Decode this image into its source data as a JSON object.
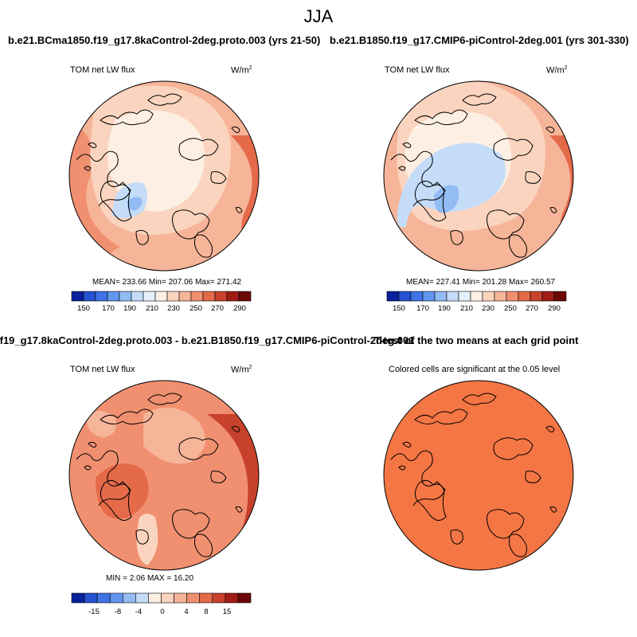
{
  "figure_title": "JJA",
  "colors": {
    "abs_palette": [
      "#08219c",
      "#2452d0",
      "#3f73e6",
      "#6296ee",
      "#93bbf4",
      "#c4dcf8",
      "#e6f0fa",
      "#fdefe3",
      "#fbd4bf",
      "#f6b498",
      "#f09070",
      "#e46a4a",
      "#c8412c",
      "#a01c14",
      "#6b0707"
    ],
    "diff_palette": [
      "#08219c",
      "#2452d0",
      "#3f73e6",
      "#6296ee",
      "#93bbf4",
      "#c4dcf8",
      "#fdefe3",
      "#fbd4bf",
      "#f6b498",
      "#f09070",
      "#e46a4a",
      "#c8412c",
      "#a01c14",
      "#6b0707"
    ],
    "significance_fill": "#f47644",
    "coast": "#000000"
  },
  "panels": {
    "p1": {
      "title": "b.e21.BCma1850.f19_g17.8kaControl-2deg.proto.003 (yrs 21-50)",
      "variable": "TOM net LW flux",
      "units": "W/m",
      "units_exp": "2",
      "stats": "MEAN= 233.66  Min= 207.06  Max= 271.42",
      "ticks": [
        "150",
        "170",
        "190",
        "210",
        "230",
        "250",
        "270",
        "290"
      ]
    },
    "p2": {
      "title": "b.e21.B1850.f19_g17.CMIP6-piControl-2deg.001 (yrs 301-330)",
      "variable": "TOM net LW flux",
      "units": "W/m",
      "units_exp": "2",
      "stats": "MEAN= 227.41  Min= 201.28  Max= 260.57",
      "ticks": [
        "150",
        "170",
        "190",
        "210",
        "230",
        "250",
        "270",
        "290"
      ]
    },
    "p3": {
      "title": ".f19_g17.8kaControl-2deg.proto.003 - b.e21.B1850.f19_g17.CMIP6-piControl-2deg.001",
      "variable": "TOM net LW flux",
      "units": "W/m",
      "units_exp": "2",
      "stats": "MIN =   2.06 MAX =  16.20",
      "ticks": [
        "-15",
        "-8",
        "-4",
        "0",
        "4",
        "8",
        "15"
      ]
    },
    "p4": {
      "title": "T-test of the two means at each grid point",
      "subtitle": "Colored cells are significant at the 0.05 level"
    }
  }
}
